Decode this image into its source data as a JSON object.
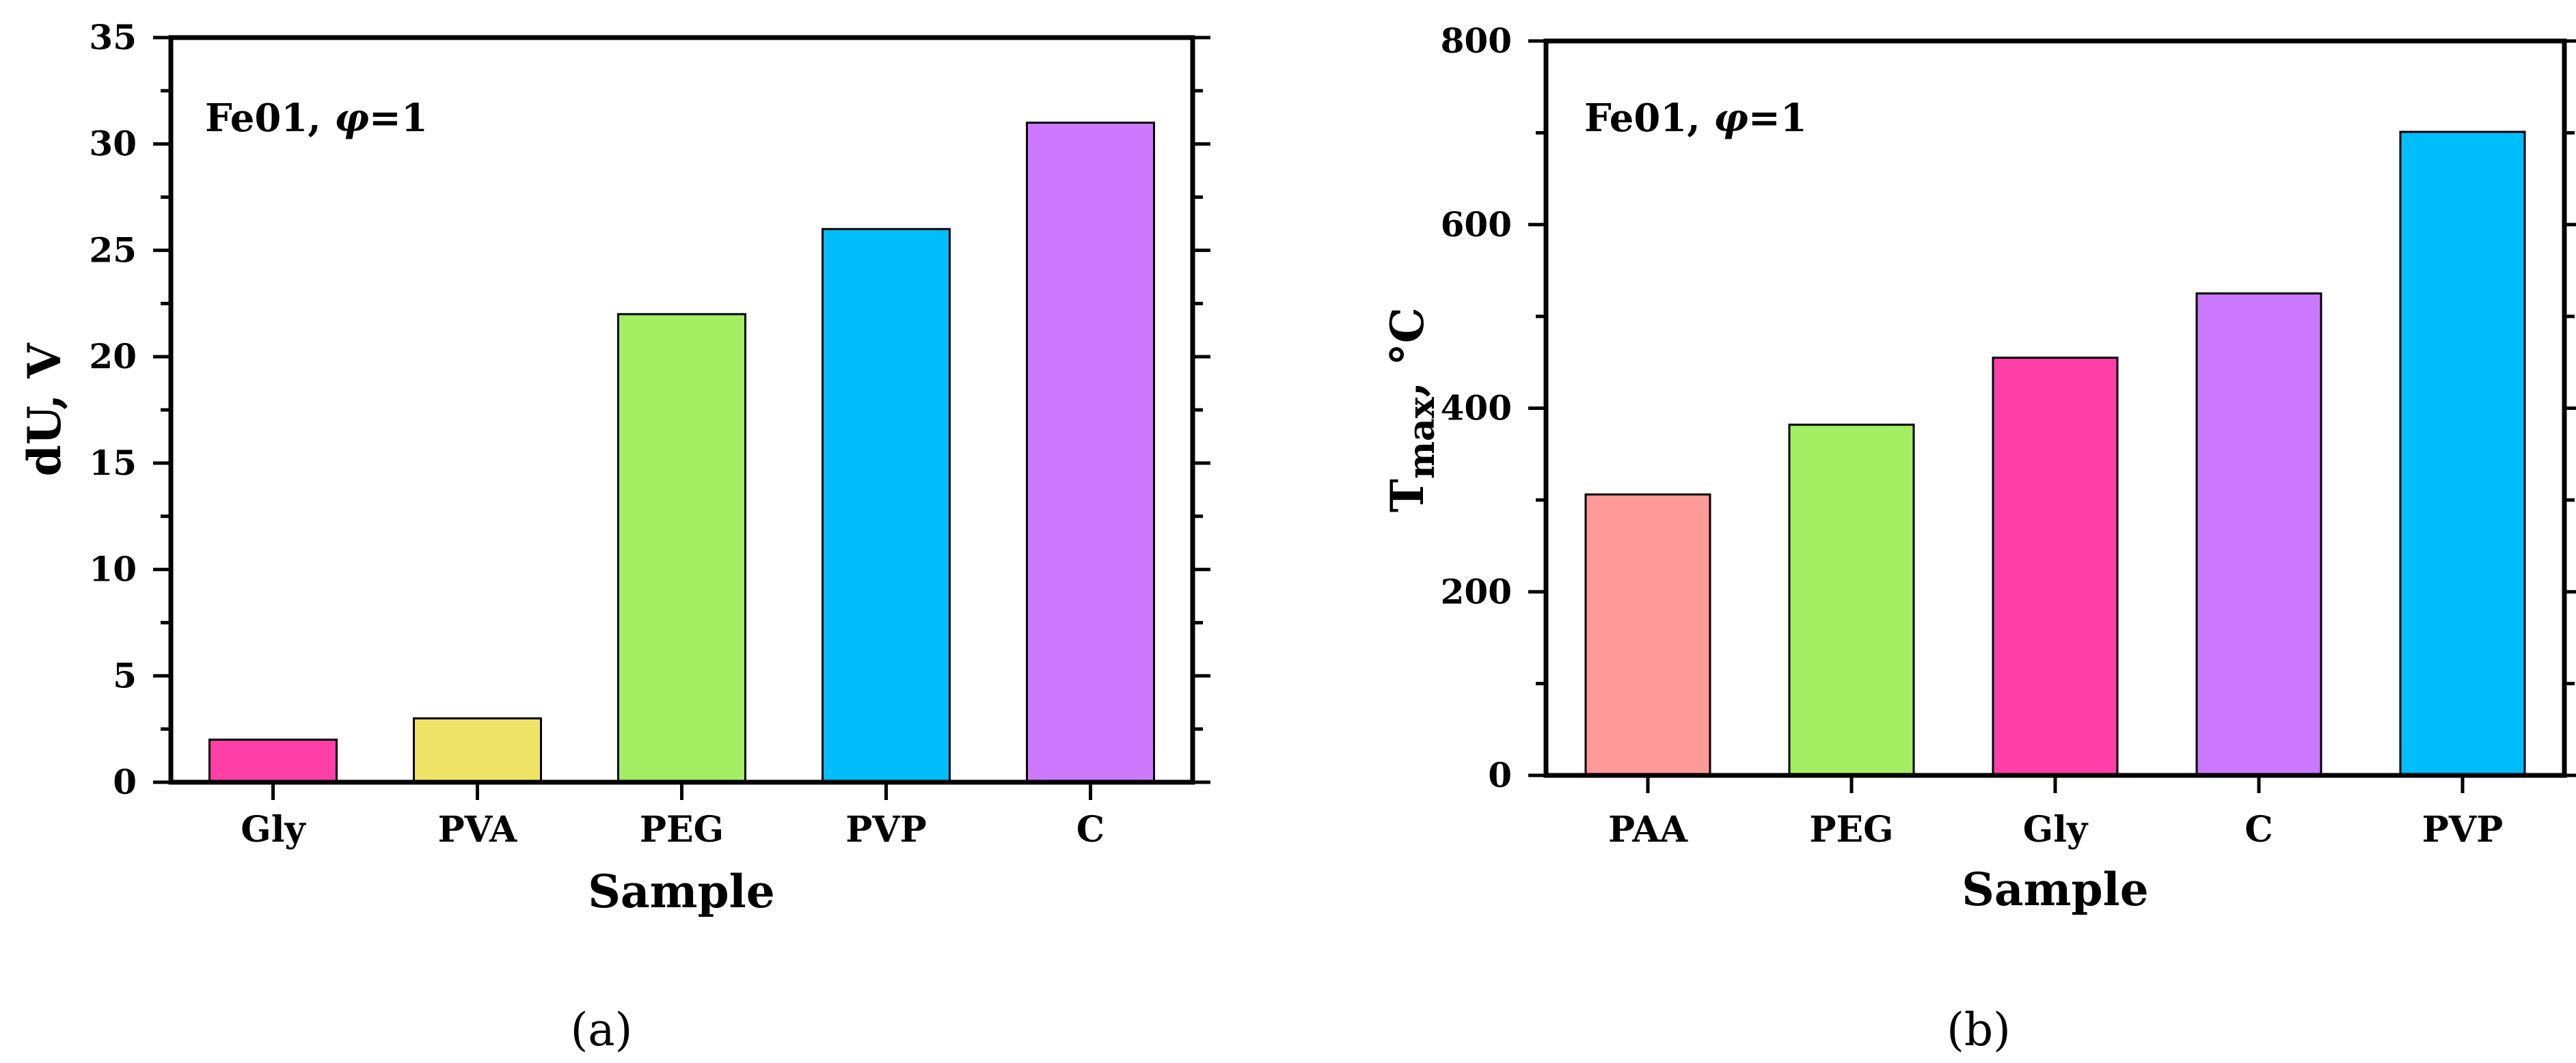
{
  "chart_data": [
    {
      "type": "bar",
      "panel_label": "(a)",
      "annotation": {
        "prefix": "Fe01, ",
        "symbol": "φ",
        "suffix": "=1"
      },
      "categories": [
        "Gly",
        "PVA",
        "PEG",
        "PVP",
        "C"
      ],
      "values": [
        2,
        3,
        22,
        26,
        31
      ],
      "colors": [
        "#ff3fa8",
        "#f0e468",
        "#a3ee62",
        "#00bdfc",
        "#cc78fe"
      ],
      "xlabel": "Sample",
      "ylabel": {
        "main": "dU, V",
        "sub": ""
      },
      "ylim": [
        0,
        35
      ],
      "yticks": [
        0,
        5,
        10,
        15,
        20,
        25,
        30,
        35
      ],
      "ytick_labels": [
        "0",
        "5",
        "10",
        "15",
        "20",
        "25",
        "30",
        "35"
      ],
      "grid": false,
      "legend": "none"
    },
    {
      "type": "bar",
      "panel_label": "(b)",
      "annotation": {
        "prefix": "Fe01, ",
        "symbol": "φ",
        "suffix": "=1"
      },
      "categories": [
        "PAA",
        "PEG",
        "Gly",
        "C",
        "PVP"
      ],
      "values": [
        306,
        382,
        455,
        525,
        701
      ],
      "colors": [
        "#ff9a99",
        "#a3ee62",
        "#ff3fa8",
        "#cc78fe",
        "#00bdfc"
      ],
      "xlabel": "Sample",
      "ylabel": {
        "main": "T",
        "sub": "max",
        "suffix": ", °C"
      },
      "ylim": [
        0,
        800
      ],
      "yticks": [
        0,
        200,
        400,
        600,
        800
      ],
      "ytick_labels": [
        "0",
        "200",
        "400",
        "600",
        "800"
      ],
      "grid": false,
      "legend": "none"
    }
  ]
}
